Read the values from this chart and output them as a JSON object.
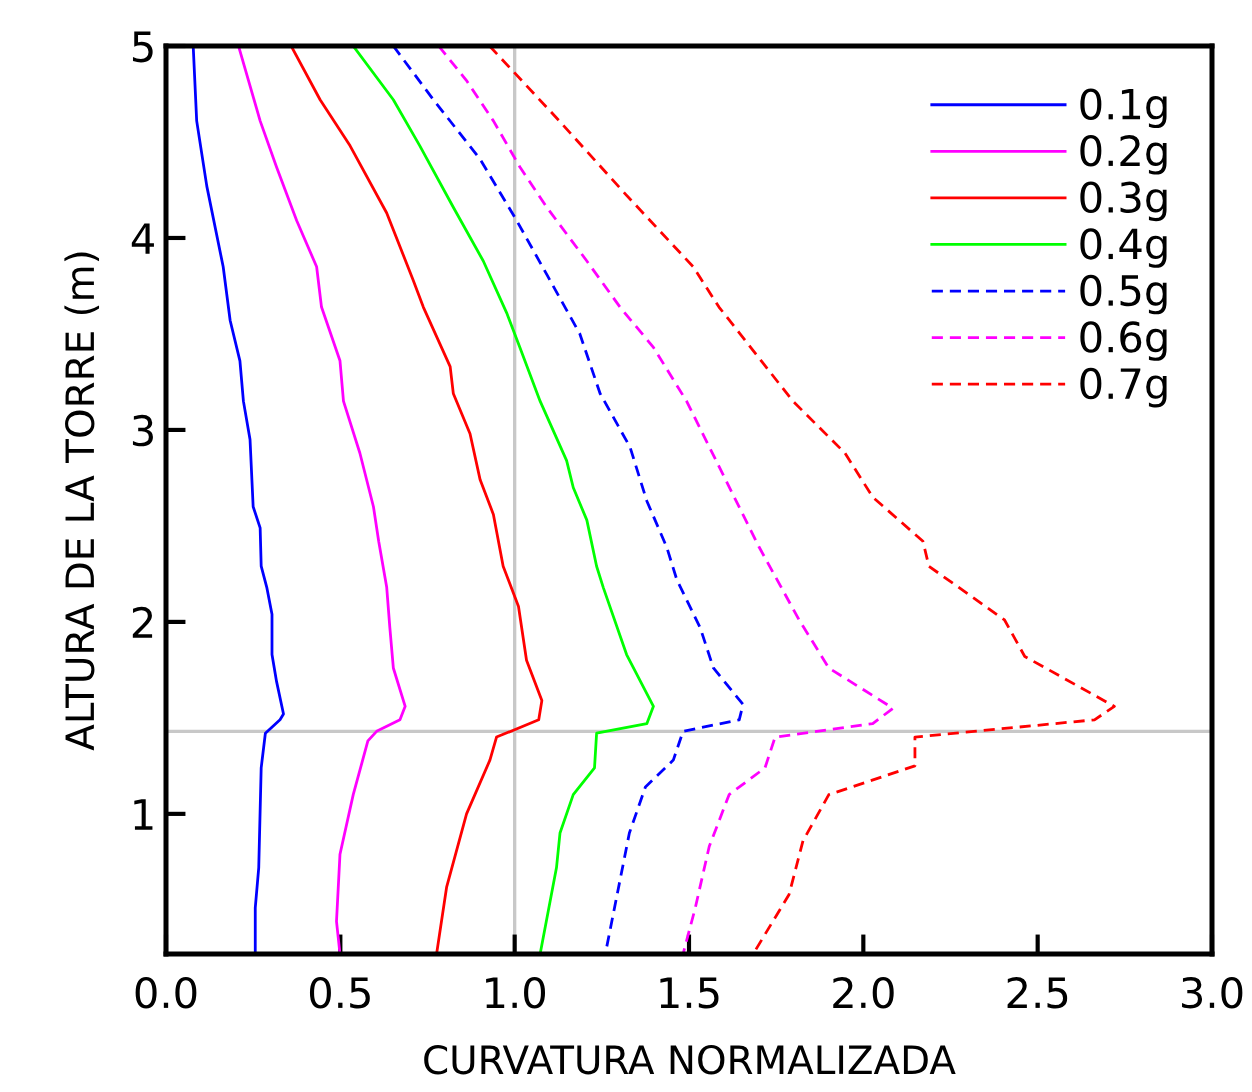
{
  "chart_data": {
    "type": "line",
    "xlabel": "CURVATURA NORMALIZADA",
    "ylabel": "ALTURA DE LA TORRE (m)",
    "xlim": [
      0,
      3
    ],
    "ylim": [
      0.27,
      5
    ],
    "xticks": [
      {
        "value": 0,
        "label": "0.0"
      },
      {
        "value": 0.5,
        "label": "0.5"
      },
      {
        "value": 1,
        "label": "1.0"
      },
      {
        "value": 1.5,
        "label": "1.5"
      },
      {
        "value": 2,
        "label": "2.0"
      },
      {
        "value": 2.5,
        "label": "2.5"
      },
      {
        "value": 3,
        "label": "3.0"
      }
    ],
    "yticks": [
      1,
      2,
      3,
      4,
      5
    ],
    "grid": false,
    "legend": "top right",
    "marker": "none",
    "ref_lines": [
      {
        "axis": "x",
        "value": 1,
        "color": "#c8c8c8"
      },
      {
        "axis": "y",
        "value": 1.43,
        "color": "#c8c8c8"
      }
    ],
    "series": [
      {
        "name": "0.1g",
        "color": "#0000ff",
        "line_style": "solid",
        "x": [
          0.078,
          0.088,
          0.117,
          0.164,
          0.184,
          0.212,
          0.222,
          0.241,
          0.25,
          0.27,
          0.273,
          0.289,
          0.304,
          0.304,
          0.317,
          0.337,
          0.327,
          0.285,
          0.273,
          0.266,
          0.256,
          0.256
        ],
        "values": [
          5,
          4.61,
          4.27,
          3.85,
          3.57,
          3.36,
          3.15,
          2.95,
          2.6,
          2.49,
          2.29,
          2.18,
          2.04,
          1.83,
          1.69,
          1.52,
          1.49,
          1.42,
          1.24,
          0.72,
          0.51,
          0.27
        ]
      },
      {
        "name": "0.2g",
        "color": "#ff00ff",
        "line_style": "solid",
        "x": [
          0.208,
          0.27,
          0.317,
          0.375,
          0.432,
          0.446,
          0.499,
          0.509,
          0.556,
          0.595,
          0.61,
          0.633,
          0.642,
          0.652,
          0.686,
          0.671,
          0.604,
          0.579,
          0.537,
          0.499,
          0.489,
          0.499
        ],
        "values": [
          5,
          4.61,
          4.37,
          4.09,
          3.85,
          3.64,
          3.36,
          3.15,
          2.88,
          2.6,
          2.42,
          2.18,
          1.97,
          1.76,
          1.56,
          1.49,
          1.43,
          1.38,
          1.1,
          0.79,
          0.44,
          0.27
        ]
      },
      {
        "name": "0.3g",
        "color": "#ff0000",
        "line_style": "solid",
        "x": [
          0.359,
          0.442,
          0.528,
          0.633,
          0.709,
          0.738,
          0.815,
          0.824,
          0.872,
          0.901,
          0.939,
          0.967,
          1.011,
          1.034,
          1.078,
          1.069,
          0.948,
          0.929,
          0.862,
          0.805,
          0.776
        ],
        "values": [
          5,
          4.72,
          4.48,
          4.13,
          3.78,
          3.64,
          3.33,
          3.19,
          2.98,
          2.74,
          2.56,
          2.29,
          2.08,
          1.8,
          1.59,
          1.49,
          1.4,
          1.28,
          1.0,
          0.62,
          0.27
        ]
      },
      {
        "name": "0.4g",
        "color": "#00ff00",
        "line_style": "solid",
        "x": [
          0.537,
          0.652,
          0.728,
          0.824,
          0.91,
          0.977,
          1.015,
          1.073,
          1.149,
          1.168,
          1.207,
          1.235,
          1.254,
          1.321,
          1.398,
          1.379,
          1.235,
          1.229,
          1.168,
          1.13,
          1.12,
          1.073
        ],
        "values": [
          5,
          4.72,
          4.48,
          4.16,
          3.88,
          3.61,
          3.43,
          3.15,
          2.84,
          2.7,
          2.53,
          2.29,
          2.18,
          1.83,
          1.56,
          1.47,
          1.42,
          1.24,
          1.1,
          0.9,
          0.72,
          0.27
        ]
      },
      {
        "name": "0.5g",
        "color": "#0000ff",
        "line_style": "dashed",
        "x": [
          0.652,
          0.767,
          0.901,
          1.006,
          1.092,
          1.187,
          1.245,
          1.331,
          1.379,
          1.436,
          1.465,
          1.532,
          1.57,
          1.655,
          1.644,
          1.483,
          1.455,
          1.375,
          1.329,
          1.26
        ],
        "values": [
          5,
          4.72,
          4.41,
          4.09,
          3.81,
          3.5,
          3.19,
          2.91,
          2.63,
          2.39,
          2.22,
          1.97,
          1.76,
          1.57,
          1.49,
          1.43,
          1.28,
          1.14,
          0.9,
          0.27
        ]
      },
      {
        "name": "0.6g",
        "color": "#ff00ff",
        "line_style": "dashed",
        "x": [
          0.782,
          0.862,
          0.939,
          1.015,
          1.092,
          1.207,
          1.302,
          1.398,
          1.493,
          1.586,
          1.701,
          1.816,
          1.901,
          2.085,
          2.027,
          1.747,
          1.718,
          1.615,
          1.558,
          1.518,
          1.483
        ],
        "values": [
          5,
          4.82,
          4.61,
          4.37,
          4.16,
          3.88,
          3.64,
          3.43,
          3.15,
          2.81,
          2.39,
          2.01,
          1.76,
          1.55,
          1.47,
          1.4,
          1.24,
          1.1,
          0.83,
          0.51,
          0.27
        ]
      },
      {
        "name": "0.7g",
        "color": "#ff0000",
        "line_style": "dashed",
        "x": [
          0.928,
          1.128,
          1.317,
          1.512,
          1.586,
          1.798,
          1.947,
          2.027,
          2.171,
          2.188,
          2.405,
          2.463,
          2.72,
          2.663,
          2.148,
          2.148,
          1.901,
          1.827,
          1.787,
          1.684
        ],
        "values": [
          5,
          4.61,
          4.23,
          3.85,
          3.64,
          3.15,
          2.88,
          2.65,
          2.42,
          2.29,
          2.01,
          1.82,
          1.56,
          1.49,
          1.4,
          1.25,
          1.1,
          0.86,
          0.58,
          0.27
        ]
      }
    ]
  }
}
